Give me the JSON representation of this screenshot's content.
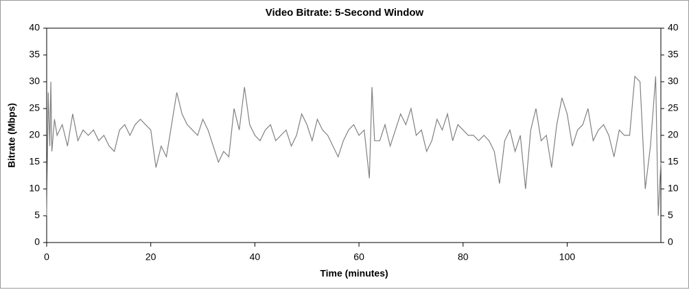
{
  "chart_data": {
    "type": "line",
    "title": "Video Bitrate: 5-Second Window",
    "x_label": "Time (minutes)",
    "y_label": "Bitrate (Mbps)",
    "x": [
      0,
      0.3,
      0.6,
      0.8,
      1,
      1.5,
      2,
      3,
      4,
      5,
      6,
      7,
      8,
      9,
      10,
      11,
      12,
      13,
      14,
      15,
      16,
      17,
      18,
      19,
      20,
      21,
      22,
      23,
      24,
      25,
      26,
      27,
      28,
      29,
      30,
      31,
      32,
      33,
      34,
      35,
      36,
      37,
      38,
      39,
      40,
      41,
      42,
      43,
      44,
      45,
      46,
      47,
      48,
      49,
      50,
      51,
      52,
      53,
      54,
      55,
      56,
      57,
      58,
      59,
      60,
      61,
      62,
      62.5,
      63,
      64,
      65,
      66,
      67,
      68,
      69,
      70,
      71,
      72,
      73,
      74,
      75,
      76,
      77,
      78,
      79,
      80,
      81,
      82,
      83,
      84,
      85,
      86,
      87,
      88,
      89,
      90,
      91,
      92,
      93,
      94,
      95,
      96,
      97,
      98,
      99,
      100,
      101,
      102,
      103,
      104,
      105,
      106,
      107,
      108,
      109,
      110,
      111,
      112,
      113,
      114,
      115,
      116,
      117,
      117.5,
      118
    ],
    "series": [
      {
        "name": "Video Bitrate",
        "color": "#808080",
        "values": [
          5,
          28,
          18,
          30,
          17,
          23,
          20,
          22,
          18,
          24,
          19,
          21,
          20,
          21,
          19,
          20,
          18,
          17,
          21,
          22,
          20,
          22,
          23,
          22,
          21,
          14,
          18,
          16,
          22,
          28,
          24,
          22,
          21,
          20,
          23,
          21,
          18,
          15,
          17,
          16,
          25,
          21,
          29,
          22,
          20,
          19,
          21,
          22,
          19,
          20,
          21,
          18,
          20,
          24,
          22,
          19,
          23,
          21,
          20,
          18,
          16,
          19,
          21,
          22,
          20,
          21,
          12,
          29,
          19,
          19,
          22,
          18,
          21,
          24,
          22,
          25,
          20,
          21,
          17,
          19,
          23,
          21,
          24,
          19,
          22,
          21,
          20,
          20,
          19,
          20,
          19,
          17,
          11,
          19,
          21,
          17,
          20,
          10,
          21,
          25,
          19,
          20,
          14,
          22,
          27,
          24,
          18,
          21,
          22,
          25,
          19,
          21,
          22,
          20,
          16,
          21,
          20,
          20,
          31,
          30,
          10,
          18,
          31,
          5,
          15
        ]
      }
    ],
    "xlim": [
      0,
      118
    ],
    "xticks": [
      0,
      20,
      40,
      60,
      80,
      100
    ],
    "ylim": [
      0,
      40
    ],
    "yticks": [
      0,
      5,
      10,
      15,
      20,
      25,
      30,
      35,
      40
    ],
    "y2lim": [
      0,
      40
    ],
    "y2ticks": [
      0,
      5,
      10,
      15,
      20,
      25,
      30,
      35,
      40
    ],
    "grid": false
  }
}
